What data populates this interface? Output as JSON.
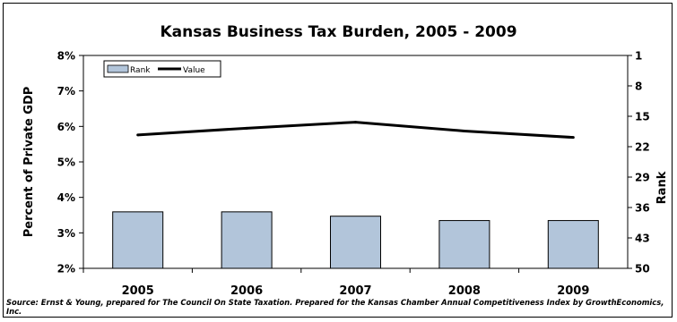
{
  "chart_data": {
    "type": "bar",
    "title": "Kansas Business Tax Burden, 2005 - 2009",
    "categories": [
      "2005",
      "2006",
      "2007",
      "2008",
      "2009"
    ],
    "ylabel": "Percent of Private GDP",
    "ylabel_right": "Rank",
    "ylim": [
      0.02,
      0.08
    ],
    "yticks": [
      "2%",
      "3%",
      "4%",
      "5%",
      "6%",
      "7%",
      "8%"
    ],
    "y2lim": [
      50,
      1
    ],
    "y2ticks": [
      "1",
      "8",
      "15",
      "22",
      "29",
      "36",
      "43",
      "50"
    ],
    "legend": {
      "placement": "top-left",
      "rank_label": "Rank",
      "value_label": "Value"
    },
    "series": [
      {
        "name": "Rank",
        "type": "bar",
        "axis": "right",
        "color": "#b2c5da",
        "values": [
          37,
          37,
          38,
          39,
          39
        ]
      },
      {
        "name": "Value",
        "type": "line",
        "axis": "left",
        "color": "#000000",
        "values": [
          0.0576,
          0.0595,
          0.0612,
          0.0587,
          0.0569
        ]
      }
    ]
  },
  "source": "Source: Ernst & Young, prepared for The Council On State Taxation. Prepared for the Kansas Chamber Annual Competitiveness Index by GrowthEconomics, Inc."
}
